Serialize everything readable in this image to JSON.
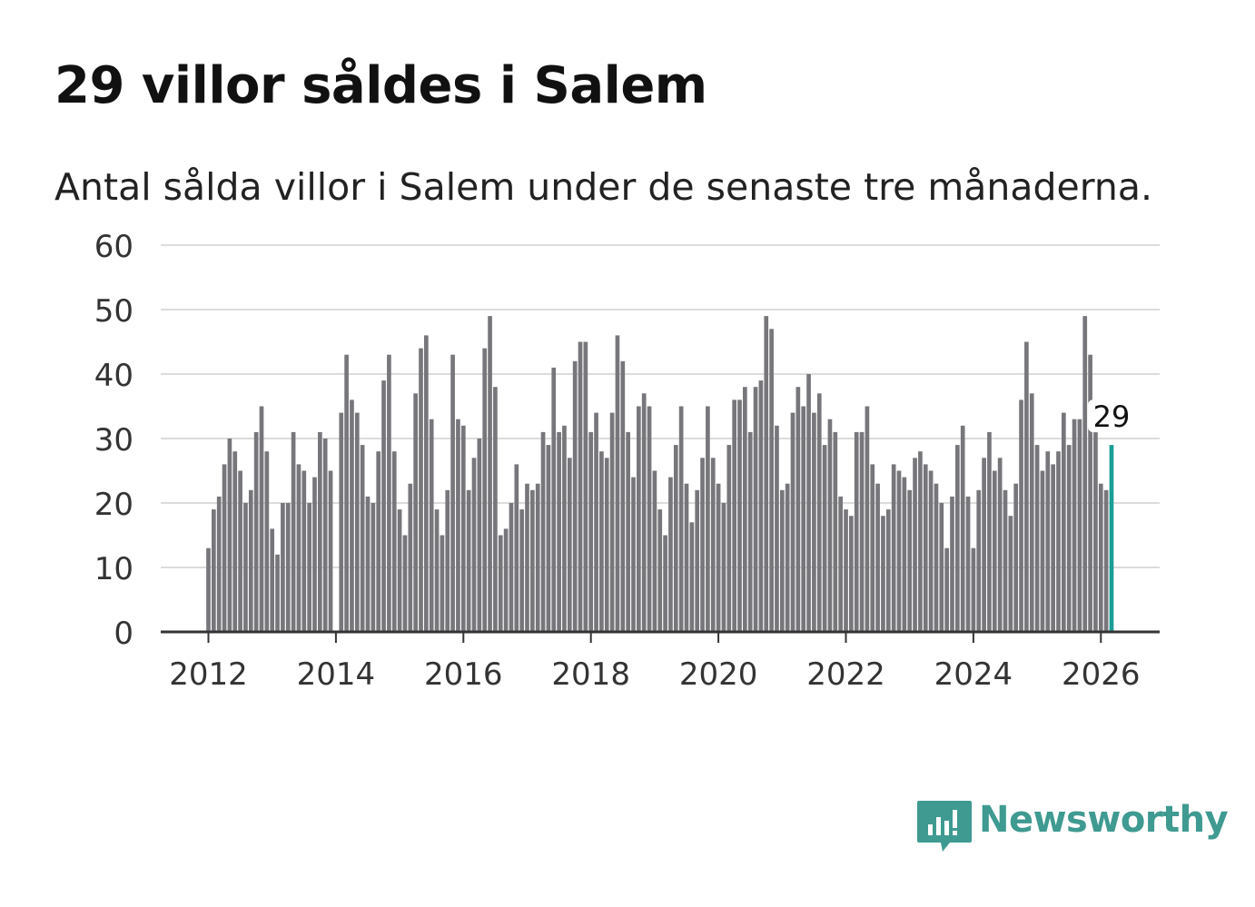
{
  "title": "29 villor såldes i Salem",
  "subtitle": "Antal sålda villor i Salem under de senaste tre månaderna.",
  "brand": {
    "name": "Newsworthy",
    "icon": "newsworthy-logo-icon",
    "color": "#3f9a91"
  },
  "colors": {
    "bar": "#77767b",
    "highlight": "#1a9d94",
    "grid": "#dcdcdc",
    "axis": "#333333",
    "text": "#333333"
  },
  "chart_data": {
    "type": "bar",
    "title": "29 villor såldes i Salem",
    "subtitle": "Antal sålda villor i Salem under de senaste tre månaderna.",
    "xlabel": "",
    "ylabel": "",
    "ylim": [
      0,
      60
    ],
    "yticks": [
      "0",
      "10",
      "20",
      "30",
      "40",
      "50",
      "60"
    ],
    "xticks": [
      "2012",
      "2014",
      "2016",
      "2018",
      "2020",
      "2022",
      "2024",
      "2026"
    ],
    "x_start": "2012-01",
    "x_step": "month",
    "grid": true,
    "highlight": {
      "index": 170,
      "label": "29"
    },
    "values": [
      13,
      19,
      21,
      26,
      30,
      28,
      25,
      20,
      22,
      31,
      35,
      28,
      16,
      12,
      20,
      20,
      31,
      26,
      25,
      20,
      24,
      31,
      30,
      25,
      0,
      34,
      43,
      36,
      34,
      29,
      21,
      20,
      28,
      39,
      43,
      28,
      19,
      15,
      23,
      37,
      44,
      46,
      33,
      19,
      15,
      22,
      43,
      33,
      32,
      22,
      27,
      30,
      44,
      49,
      38,
      15,
      16,
      20,
      26,
      19,
      23,
      22,
      23,
      31,
      29,
      41,
      31,
      32,
      27,
      42,
      45,
      45,
      31,
      34,
      28,
      27,
      34,
      46,
      42,
      31,
      24,
      35,
      37,
      35,
      25,
      19,
      15,
      24,
      29,
      35,
      23,
      17,
      22,
      27,
      35,
      27,
      23,
      20,
      29,
      36,
      36,
      38,
      31,
      38,
      39,
      49,
      47,
      32,
      22,
      23,
      34,
      38,
      35,
      40,
      34,
      37,
      29,
      33,
      31,
      21,
      19,
      18,
      31,
      31,
      35,
      26,
      23,
      18,
      19,
      26,
      25,
      24,
      22,
      27,
      28,
      26,
      25,
      23,
      20,
      13,
      21,
      29,
      32,
      21,
      13,
      22,
      27,
      31,
      25,
      27,
      22,
      18,
      23,
      36,
      45,
      37,
      29,
      25,
      28,
      26,
      28,
      34,
      29,
      33,
      33,
      49,
      43,
      31,
      23,
      22,
      29
    ]
  }
}
